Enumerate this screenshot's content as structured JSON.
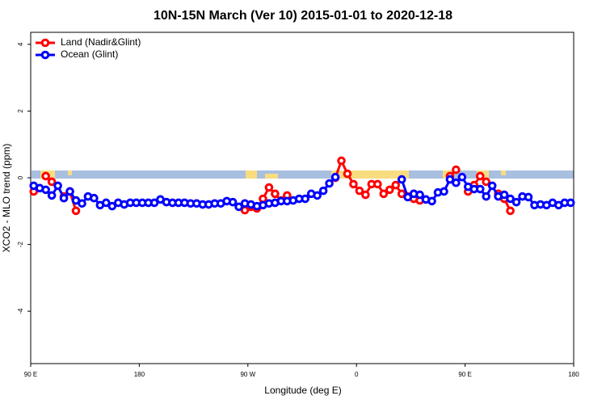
{
  "chart_data": {
    "type": "line",
    "title": "10N-15N March (Ver 10)   2015-01-01 to 2020-12-18",
    "x_label": "Longitude (deg E)",
    "y_label": "XCO2 - MLO trend (ppm)",
    "x": [
      92.5,
      97.5,
      102.5,
      107.5,
      112.5,
      117.5,
      122.5,
      127.5,
      132.5,
      137.5,
      142.5,
      147.5,
      152.5,
      157.5,
      162.5,
      167.5,
      172.5,
      177.5,
      182.5,
      187.5,
      192.5,
      197.5,
      202.5,
      207.5,
      212.5,
      217.5,
      222.5,
      227.5,
      232.5,
      237.5,
      242.5,
      247.5,
      252.5,
      257.5,
      262.5,
      267.5,
      272.5,
      277.5,
      282.5,
      287.5,
      292.5,
      297.5,
      302.5,
      307.5,
      312.5,
      317.5,
      322.5,
      327.5,
      332.5,
      337.5,
      342.5,
      347.5,
      352.5,
      357.5,
      362.5,
      367.5,
      372.5,
      377.5,
      382.5,
      387.5,
      392.5,
      397.5,
      402.5,
      407.5,
      412.5,
      417.5,
      422.5,
      427.5,
      432.5,
      437.5,
      442.5,
      447.5,
      452.5,
      457.5,
      462.5,
      467.5,
      472.5,
      477.5,
      482.5,
      487.5,
      492.5,
      497.5,
      502.5,
      507.5,
      512.5,
      517.5,
      522.5,
      527.5,
      532.5,
      537.5
    ],
    "series": [
      {
        "name": "Land (Nadir&Glint)",
        "color": "#ff0000",
        "values": [
          -0.41,
          null,
          0.05,
          -0.12,
          null,
          -0.56,
          -0.41,
          -0.99,
          null,
          null,
          null,
          null,
          null,
          null,
          null,
          null,
          null,
          null,
          null,
          null,
          null,
          null,
          null,
          null,
          null,
          null,
          null,
          null,
          null,
          null,
          null,
          null,
          null,
          null,
          null,
          -0.97,
          -0.87,
          -0.92,
          -0.63,
          -0.29,
          -0.48,
          -0.68,
          -0.53,
          null,
          null,
          null,
          null,
          null,
          null,
          null,
          0,
          0.51,
          0.12,
          -0.19,
          -0.39,
          -0.51,
          -0.19,
          -0.19,
          -0.48,
          -0.36,
          -0.22,
          -0.48,
          -0.56,
          -0.63,
          -0.68,
          null,
          null,
          null,
          null,
          0.05,
          0.24,
          null,
          -0.41,
          -0.22,
          0.05,
          -0.12,
          null,
          -0.48,
          -0.63,
          -0.99,
          null,
          null,
          null,
          null,
          null,
          null,
          null,
          null,
          null,
          null
        ]
      },
      {
        "name": "Ocean (Glint)",
        "color": "#0000ff",
        "values": [
          -0.24,
          -0.31,
          -0.36,
          -0.53,
          -0.24,
          -0.61,
          -0.41,
          -0.68,
          -0.77,
          -0.56,
          -0.61,
          -0.82,
          -0.75,
          -0.85,
          -0.75,
          -0.8,
          -0.75,
          -0.75,
          -0.75,
          -0.75,
          -0.75,
          -0.65,
          -0.73,
          -0.75,
          -0.75,
          -0.75,
          -0.77,
          -0.77,
          -0.8,
          -0.8,
          -0.77,
          -0.77,
          -0.7,
          -0.73,
          -0.87,
          -0.77,
          -0.8,
          -0.85,
          -0.82,
          -0.77,
          -0.75,
          -0.7,
          -0.7,
          -0.68,
          -0.63,
          -0.63,
          -0.48,
          -0.53,
          -0.39,
          -0.17,
          0.02,
          null,
          null,
          null,
          null,
          null,
          null,
          null,
          null,
          null,
          null,
          -0.05,
          -0.58,
          -0.48,
          -0.51,
          -0.65,
          -0.7,
          -0.44,
          -0.41,
          -0.05,
          -0.15,
          0.02,
          -0.27,
          -0.34,
          -0.34,
          -0.56,
          -0.24,
          -0.56,
          -0.51,
          -0.63,
          -0.73,
          -0.56,
          -0.58,
          -0.82,
          -0.8,
          -0.82,
          -0.75,
          -0.82,
          -0.75,
          -0.75
        ]
      }
    ],
    "xlim": [
      90,
      540
    ],
    "xticks": [
      {
        "value": 90,
        "label": "90 E"
      },
      180,
      {
        "value": 270,
        "label": "90 W"
      },
      {
        "value": 360,
        "label": "0"
      },
      {
        "value": 450,
        "label": "90 E"
      },
      {
        "value": 540,
        "label": "180"
      }
    ],
    "ylim": [
      -5.57,
      4.36
    ],
    "yticks": [
      -4,
      -2,
      0,
      2,
      4
    ],
    "legend": "top-left"
  }
}
